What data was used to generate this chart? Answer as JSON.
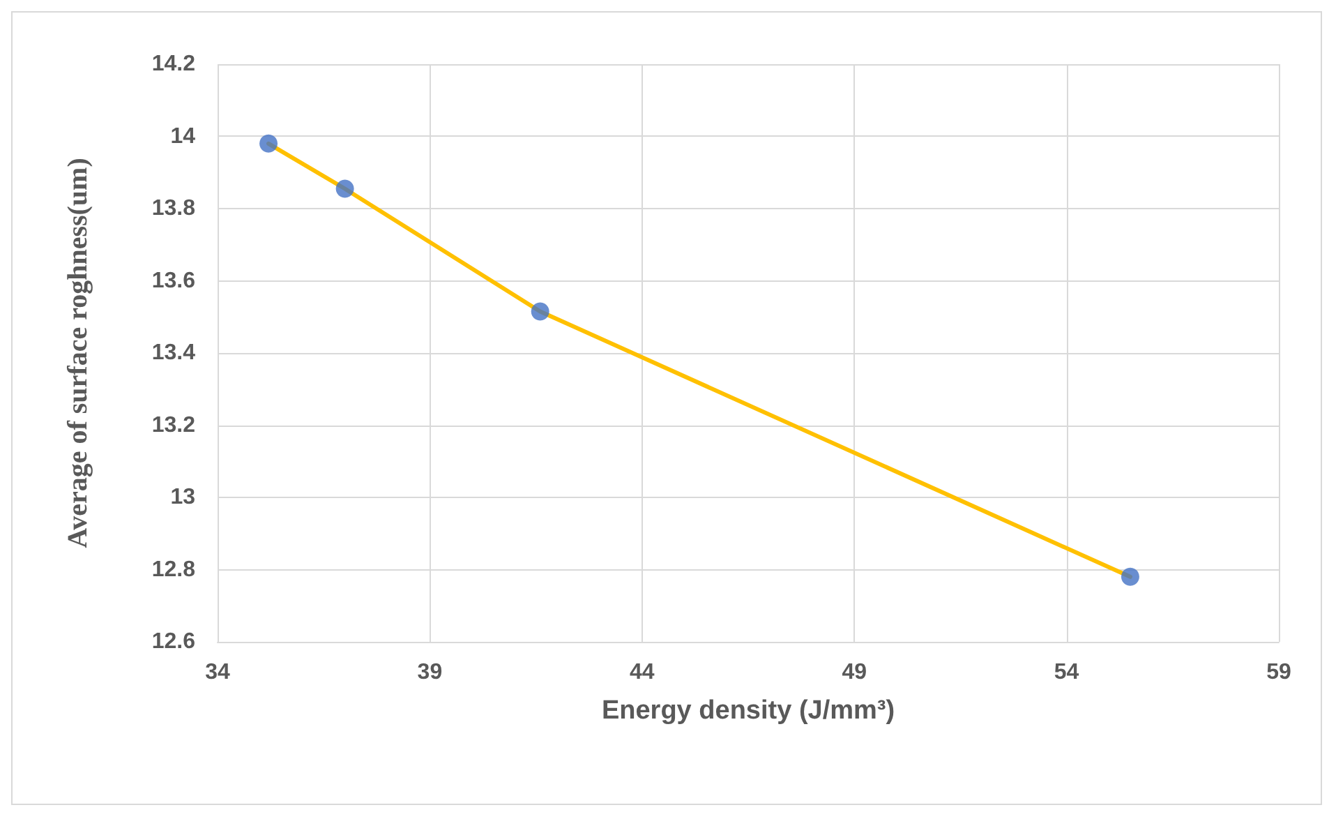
{
  "chart_data": {
    "type": "line",
    "xlabel": "Energy density (J/mm³)",
    "ylabel": "Average of surface roghness(um)",
    "x": [
      35.2,
      37.0,
      41.6,
      55.5
    ],
    "series": [
      {
        "type": "line",
        "color": "#ffc000",
        "marker": "none",
        "values": [
          13.98,
          13.855,
          13.515,
          12.78
        ]
      },
      {
        "type": "scatter",
        "color": "#4472c4",
        "marker": "circle",
        "values": [
          13.98,
          13.855,
          13.515,
          12.78
        ]
      }
    ],
    "xlim": [
      34,
      59
    ],
    "xticks": [
      34,
      39,
      44,
      49,
      54,
      59
    ],
    "ylim": [
      12.6,
      14.2
    ],
    "yticks": [
      12.6,
      12.8,
      13,
      13.2,
      13.4,
      13.6,
      13.8,
      14,
      14.2
    ],
    "grid": true
  }
}
